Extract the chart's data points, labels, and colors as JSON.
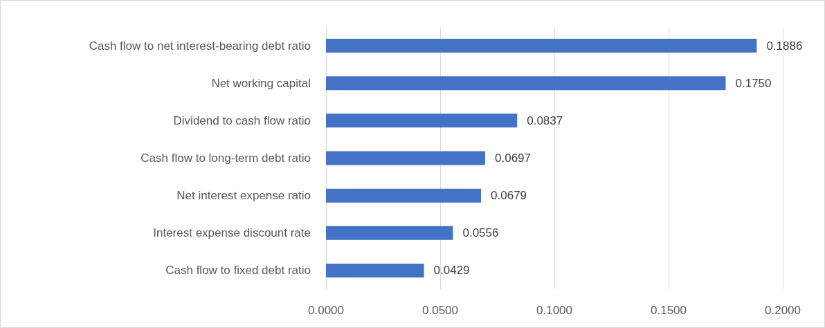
{
  "chart_data": {
    "type": "bar",
    "orientation": "horizontal",
    "categories": [
      "Cash flow to net interest-bearing debt ratio",
      "Net working capital",
      "Dividend to cash flow ratio",
      "Cash flow to long-term debt ratio",
      "Net interest expense ratio",
      "Interest expense discount rate",
      "Cash flow to fixed debt ratio"
    ],
    "values": [
      0.1886,
      0.175,
      0.0837,
      0.0697,
      0.0679,
      0.0556,
      0.0429
    ],
    "value_labels": [
      "0.1886",
      "0.1750",
      "0.0837",
      "0.0697",
      "0.0679",
      "0.0556",
      "0.0429"
    ],
    "color": "#4472c4",
    "xlim": [
      0,
      0.2
    ],
    "xticks": [
      {
        "value": 0,
        "label": "0.0000"
      },
      {
        "value": 0.05,
        "label": "0.0500"
      },
      {
        "value": 0.1,
        "label": "0.1000"
      },
      {
        "value": 0.15,
        "label": "0.1500"
      },
      {
        "value": 0.2,
        "label": "0.2000"
      }
    ],
    "grid": "x"
  }
}
